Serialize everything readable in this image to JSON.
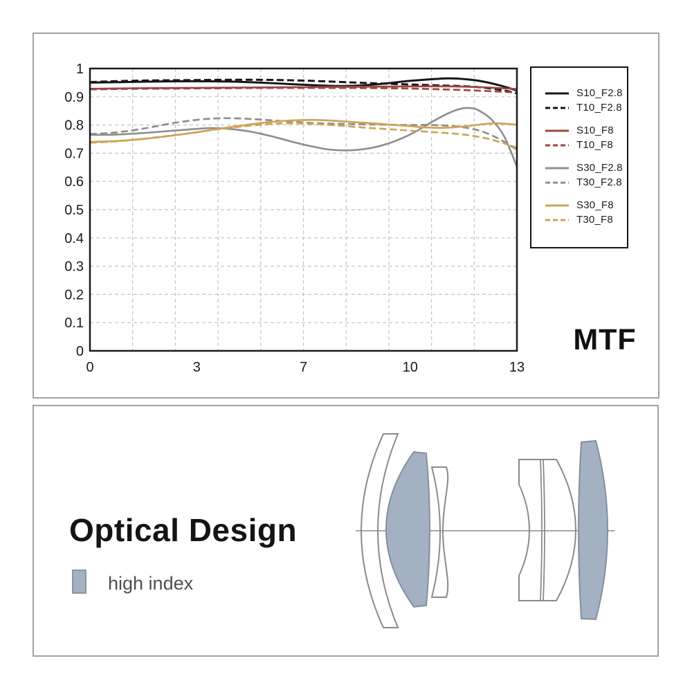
{
  "colors": {
    "panel_border": "#a2a2a2",
    "plot_border": "#1a1a1a",
    "grid": "#c4c4c4",
    "tick_text": "#1a1a1a",
    "black_series": "#161616",
    "red_series": "#9c4742",
    "gray_series": "#8f8f8f",
    "gold_series": "#d0a355",
    "high_index_fill": "#a3b1c2"
  },
  "chart_data": {
    "type": "line",
    "title": "MTF",
    "xlabel": "",
    "ylabel": "",
    "ylim": [
      0,
      1
    ],
    "grid": true,
    "legend_position": "right",
    "y_ticks": [
      "1",
      "0.9",
      "0.8",
      "0.7",
      "0.6",
      "0.5",
      "0.4",
      "0.3",
      "0.2",
      "0.1",
      "0"
    ],
    "x_ticks": [
      {
        "label": "0",
        "pos": 0.0
      },
      {
        "label": "3",
        "pos": 0.25
      },
      {
        "label": "7",
        "pos": 0.5
      },
      {
        "label": "10",
        "pos": 0.75
      },
      {
        "label": "13",
        "pos": 1.0
      }
    ],
    "x_note": "point positions are fractions of the x-axis width",
    "series": [
      {
        "name": "S10_F2.8",
        "color": "#161616",
        "dash": false,
        "points": [
          [
            0,
            0.95
          ],
          [
            0.08,
            0.952
          ],
          [
            0.16,
            0.954
          ],
          [
            0.24,
            0.955
          ],
          [
            0.32,
            0.954
          ],
          [
            0.4,
            0.95
          ],
          [
            0.48,
            0.944
          ],
          [
            0.54,
            0.94
          ],
          [
            0.58,
            0.938
          ],
          [
            0.62,
            0.939
          ],
          [
            0.68,
            0.945
          ],
          [
            0.74,
            0.955
          ],
          [
            0.8,
            0.962
          ],
          [
            0.84,
            0.965
          ],
          [
            0.88,
            0.962
          ],
          [
            0.92,
            0.954
          ],
          [
            0.96,
            0.94
          ],
          [
            1,
            0.922
          ]
        ]
      },
      {
        "name": "T10_F2.8",
        "color": "#161616",
        "dash": true,
        "points": [
          [
            0,
            0.952
          ],
          [
            0.08,
            0.956
          ],
          [
            0.16,
            0.958
          ],
          [
            0.24,
            0.959
          ],
          [
            0.32,
            0.96
          ],
          [
            0.4,
            0.96
          ],
          [
            0.48,
            0.958
          ],
          [
            0.56,
            0.954
          ],
          [
            0.64,
            0.949
          ],
          [
            0.72,
            0.945
          ],
          [
            0.8,
            0.941
          ],
          [
            0.88,
            0.937
          ],
          [
            0.93,
            0.931
          ],
          [
            0.97,
            0.922
          ],
          [
            1,
            0.912
          ]
        ]
      },
      {
        "name": "S10_F8",
        "color": "#9c4742",
        "dash": false,
        "points": [
          [
            0,
            0.928
          ],
          [
            0.1,
            0.93
          ],
          [
            0.2,
            0.931
          ],
          [
            0.3,
            0.932
          ],
          [
            0.4,
            0.933
          ],
          [
            0.5,
            0.934
          ],
          [
            0.6,
            0.935
          ],
          [
            0.7,
            0.936
          ],
          [
            0.8,
            0.937
          ],
          [
            0.87,
            0.936
          ],
          [
            0.93,
            0.933
          ],
          [
            1,
            0.927
          ]
        ]
      },
      {
        "name": "T10_F8",
        "color": "#9c4742",
        "dash": true,
        "points": [
          [
            0,
            0.926
          ],
          [
            0.1,
            0.928
          ],
          [
            0.2,
            0.929
          ],
          [
            0.3,
            0.93
          ],
          [
            0.4,
            0.931
          ],
          [
            0.5,
            0.931
          ],
          [
            0.6,
            0.931
          ],
          [
            0.7,
            0.93
          ],
          [
            0.78,
            0.928
          ],
          [
            0.85,
            0.925
          ],
          [
            0.92,
            0.921
          ],
          [
            1,
            0.915
          ]
        ]
      },
      {
        "name": "S30_F2.8",
        "color": "#8f8f8f",
        "dash": false,
        "points": [
          [
            0,
            0.765
          ],
          [
            0.06,
            0.766
          ],
          [
            0.12,
            0.771
          ],
          [
            0.18,
            0.778
          ],
          [
            0.24,
            0.785
          ],
          [
            0.28,
            0.789
          ],
          [
            0.32,
            0.787
          ],
          [
            0.37,
            0.778
          ],
          [
            0.42,
            0.762
          ],
          [
            0.47,
            0.742
          ],
          [
            0.52,
            0.724
          ],
          [
            0.56,
            0.713
          ],
          [
            0.6,
            0.71
          ],
          [
            0.64,
            0.714
          ],
          [
            0.68,
            0.726
          ],
          [
            0.72,
            0.746
          ],
          [
            0.76,
            0.774
          ],
          [
            0.8,
            0.81
          ],
          [
            0.84,
            0.842
          ],
          [
            0.87,
            0.858
          ],
          [
            0.89,
            0.86
          ],
          [
            0.91,
            0.852
          ],
          [
            0.94,
            0.82
          ],
          [
            0.97,
            0.76
          ],
          [
            1,
            0.652
          ]
        ]
      },
      {
        "name": "T30_F2.8",
        "color": "#8f8f8f",
        "dash": true,
        "points": [
          [
            0,
            0.768
          ],
          [
            0.05,
            0.772
          ],
          [
            0.1,
            0.781
          ],
          [
            0.15,
            0.794
          ],
          [
            0.2,
            0.808
          ],
          [
            0.25,
            0.818
          ],
          [
            0.29,
            0.823
          ],
          [
            0.33,
            0.824
          ],
          [
            0.38,
            0.821
          ],
          [
            0.44,
            0.815
          ],
          [
            0.5,
            0.809
          ],
          [
            0.56,
            0.805
          ],
          [
            0.62,
            0.803
          ],
          [
            0.68,
            0.801
          ],
          [
            0.74,
            0.8
          ],
          [
            0.8,
            0.8
          ],
          [
            0.85,
            0.796
          ],
          [
            0.89,
            0.788
          ],
          [
            0.92,
            0.776
          ],
          [
            0.95,
            0.757
          ],
          [
            0.98,
            0.732
          ],
          [
            1,
            0.712
          ]
        ]
      },
      {
        "name": "S30_F8",
        "color": "#d0a355",
        "dash": false,
        "points": [
          [
            0,
            0.74
          ],
          [
            0.06,
            0.743
          ],
          [
            0.12,
            0.75
          ],
          [
            0.18,
            0.76
          ],
          [
            0.24,
            0.772
          ],
          [
            0.3,
            0.786
          ],
          [
            0.36,
            0.799
          ],
          [
            0.42,
            0.81
          ],
          [
            0.47,
            0.816
          ],
          [
            0.52,
            0.818
          ],
          [
            0.57,
            0.815
          ],
          [
            0.62,
            0.81
          ],
          [
            0.68,
            0.804
          ],
          [
            0.74,
            0.797
          ],
          [
            0.79,
            0.791
          ],
          [
            0.83,
            0.79
          ],
          [
            0.87,
            0.794
          ],
          [
            0.91,
            0.801
          ],
          [
            0.95,
            0.806
          ],
          [
            1,
            0.801
          ]
        ]
      },
      {
        "name": "T30_F8",
        "color": "#d0a355",
        "dash": true,
        "points": [
          [
            0,
            0.737
          ],
          [
            0.08,
            0.744
          ],
          [
            0.16,
            0.757
          ],
          [
            0.24,
            0.772
          ],
          [
            0.32,
            0.789
          ],
          [
            0.4,
            0.801
          ],
          [
            0.46,
            0.806
          ],
          [
            0.52,
            0.804
          ],
          [
            0.58,
            0.798
          ],
          [
            0.64,
            0.791
          ],
          [
            0.7,
            0.785
          ],
          [
            0.76,
            0.779
          ],
          [
            0.82,
            0.773
          ],
          [
            0.87,
            0.767
          ],
          [
            0.91,
            0.758
          ],
          [
            0.95,
            0.744
          ],
          [
            1,
            0.72
          ]
        ]
      }
    ]
  },
  "optical": {
    "title": "Optical Design",
    "legend_label": "high index",
    "element_count": 7,
    "high_index_elements": [
      2,
      7
    ]
  }
}
